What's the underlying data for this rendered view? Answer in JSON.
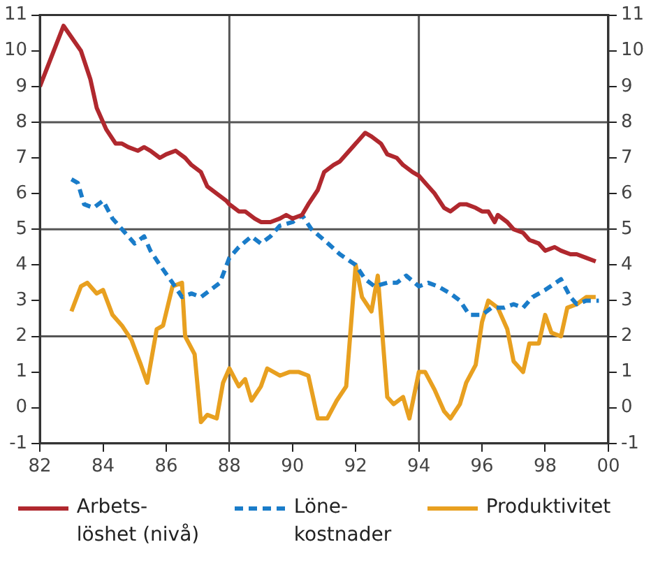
{
  "chart_data": {
    "type": "line",
    "legend": "bottom",
    "line_style": "solid",
    "marker": "none",
    "xlim": [
      1982,
      2000
    ],
    "xticks": [
      {
        "value": 1982,
        "label": "82"
      },
      {
        "value": 1984,
        "label": "84"
      },
      {
        "value": 1986,
        "label": "86"
      },
      {
        "value": 1988,
        "label": "88"
      },
      {
        "value": 1990,
        "label": "90"
      },
      {
        "value": 1992,
        "label": "92"
      },
      {
        "value": 1994,
        "label": "94"
      },
      {
        "value": 1996,
        "label": "96"
      },
      {
        "value": 1998,
        "label": "98"
      },
      {
        "value": 2000,
        "label": "00"
      }
    ],
    "ylim": [
      -1,
      11
    ],
    "yticks": [
      -1,
      0,
      1,
      2,
      3,
      4,
      5,
      6,
      7,
      8,
      9,
      10,
      11
    ],
    "y2lim": [
      -1,
      11
    ],
    "y2ticks": [
      -1,
      0,
      1,
      2,
      3,
      4,
      5,
      6,
      7,
      8,
      9,
      10,
      11
    ],
    "ref_lines": [
      {
        "axis": "x",
        "value": 1988,
        "color": "#555555"
      },
      {
        "axis": "x",
        "value": 1994,
        "color": "#555555"
      },
      {
        "axis": "y",
        "value": 2,
        "color": "#555555"
      },
      {
        "axis": "y",
        "value": 5,
        "color": "#555555"
      },
      {
        "axis": "y",
        "value": 8,
        "color": "#555555"
      }
    ],
    "series": [
      {
        "name": "Arbets-\nlöshet (nivå)",
        "color": "#b0282e",
        "x": [
          1982,
          1982.75,
          1983.3,
          1983.6,
          1983.8,
          1984.1,
          1984.4,
          1984.6,
          1984.8,
          1985.1,
          1985.3,
          1985.5,
          1985.8,
          1986,
          1986.3,
          1986.6,
          1986.8,
          1987.1,
          1987.3,
          1987.6,
          1987.9,
          1988,
          1988.3,
          1988.5,
          1988.8,
          1989,
          1989.3,
          1989.6,
          1989.8,
          1990,
          1990.3,
          1990.5,
          1990.8,
          1991,
          1991.3,
          1991.5,
          1991.8,
          1992,
          1992.3,
          1992.5,
          1992.8,
          1993,
          1993.3,
          1993.5,
          1993.8,
          1994,
          1994.3,
          1994.5,
          1994.8,
          1995,
          1995.3,
          1995.5,
          1995.8,
          1996,
          1996.2,
          1996.4,
          1996.5,
          1996.8,
          1997,
          1997.3,
          1997.5,
          1997.8,
          1998,
          1998.3,
          1998.5,
          1998.8,
          1999,
          1999.3,
          1999.6
        ],
        "values": [
          9.0,
          10.7,
          10.0,
          9.2,
          8.4,
          7.8,
          7.4,
          7.4,
          7.3,
          7.2,
          7.3,
          7.2,
          7.0,
          7.1,
          7.2,
          7.0,
          6.8,
          6.6,
          6.2,
          6.0,
          5.8,
          5.7,
          5.5,
          5.5,
          5.3,
          5.2,
          5.2,
          5.3,
          5.4,
          5.3,
          5.4,
          5.7,
          6.1,
          6.6,
          6.8,
          6.9,
          7.2,
          7.4,
          7.7,
          7.6,
          7.4,
          7.1,
          7.0,
          6.8,
          6.6,
          6.5,
          6.2,
          6.0,
          5.6,
          5.5,
          5.7,
          5.7,
          5.6,
          5.5,
          5.5,
          5.2,
          5.4,
          5.2,
          5.0,
          4.9,
          4.7,
          4.6,
          4.4,
          4.5,
          4.4,
          4.3,
          4.3,
          4.2,
          4.1
        ]
      },
      {
        "name": "Löne-\nkostnader",
        "color": "#1a7cc9",
        "line_style": "dashed",
        "x": [
          1983,
          1983.2,
          1983.4,
          1983.7,
          1984,
          1984.3,
          1984.6,
          1985,
          1985.3,
          1985.5,
          1985.8,
          1986.2,
          1986.5,
          1986.8,
          1987.1,
          1987.4,
          1987.7,
          1988,
          1988.3,
          1988.7,
          1989,
          1989.3,
          1989.6,
          1990,
          1990.3,
          1990.6,
          1991,
          1991.5,
          1992,
          1992.3,
          1992.6,
          1993,
          1993.3,
          1993.6,
          1994,
          1994.3,
          1994.6,
          1995,
          1995.3,
          1995.6,
          1996,
          1996.3,
          1996.7,
          1997,
          1997.3,
          1997.6,
          1998,
          1998.5,
          1998.8,
          1999,
          1999.3,
          1999.7
        ],
        "values": [
          6.4,
          6.3,
          5.7,
          5.6,
          5.8,
          5.3,
          5.0,
          4.6,
          4.8,
          4.4,
          4.0,
          3.5,
          3.1,
          3.2,
          3.1,
          3.3,
          3.5,
          4.2,
          4.5,
          4.8,
          4.6,
          4.8,
          5.1,
          5.2,
          5.4,
          5.0,
          4.7,
          4.3,
          4.0,
          3.6,
          3.4,
          3.5,
          3.5,
          3.7,
          3.4,
          3.5,
          3.4,
          3.2,
          3.0,
          2.6,
          2.6,
          2.8,
          2.8,
          2.9,
          2.8,
          3.1,
          3.3,
          3.6,
          3.1,
          2.9,
          3.0,
          3.0
        ]
      },
      {
        "name": "Produktivitet",
        "color": "#e8a020",
        "x": [
          1983,
          1983.3,
          1983.5,
          1983.8,
          1984,
          1984.3,
          1984.6,
          1984.9,
          1985.2,
          1985.4,
          1985.7,
          1985.9,
          1986.2,
          1986.5,
          1986.6,
          1986.9,
          1987.1,
          1987.3,
          1987.6,
          1987.8,
          1988,
          1988.3,
          1988.5,
          1988.7,
          1989,
          1989.2,
          1989.6,
          1989.9,
          1990.2,
          1990.5,
          1990.8,
          1991.1,
          1991.4,
          1991.7,
          1992,
          1992.2,
          1992.5,
          1992.7,
          1993,
          1993.2,
          1993.5,
          1993.7,
          1994,
          1994.2,
          1994.5,
          1994.8,
          1995,
          1995.3,
          1995.5,
          1995.8,
          1996,
          1996.2,
          1996.5,
          1996.8,
          1997,
          1997.3,
          1997.5,
          1997.8,
          1998,
          1998.2,
          1998.5,
          1998.7,
          1999,
          1999.3,
          1999.6
        ],
        "values": [
          2.7,
          3.4,
          3.5,
          3.2,
          3.3,
          2.6,
          2.3,
          1.9,
          1.2,
          0.7,
          2.2,
          2.3,
          3.4,
          3.5,
          2.0,
          1.5,
          -0.4,
          -0.2,
          -0.3,
          0.7,
          1.1,
          0.6,
          0.8,
          0.2,
          0.6,
          1.1,
          0.9,
          1.0,
          1.0,
          0.9,
          -0.3,
          -0.3,
          0.2,
          0.6,
          4.0,
          3.1,
          2.7,
          3.7,
          0.3,
          0.1,
          0.3,
          -0.3,
          1.0,
          1.0,
          0.5,
          -0.1,
          -0.3,
          0.1,
          0.7,
          1.2,
          2.4,
          3.0,
          2.8,
          2.2,
          1.3,
          1.0,
          1.8,
          1.8,
          2.6,
          2.1,
          2.0,
          2.8,
          2.9,
          3.1,
          3.1
        ]
      }
    ]
  }
}
